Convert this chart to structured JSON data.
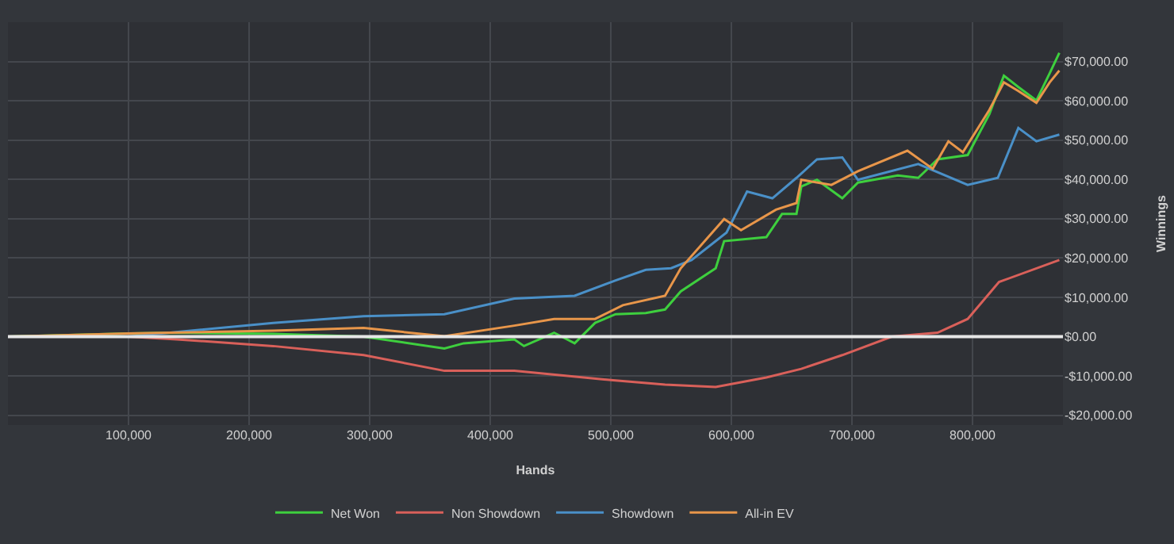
{
  "chart_data": {
    "type": "line",
    "xlabel": "Hands",
    "ylabel": "Winnings",
    "xlim": [
      0,
      875000
    ],
    "xticks": [
      {
        "value": 100000,
        "label": "100,000"
      },
      {
        "value": 200000,
        "label": "200,000"
      },
      {
        "value": 300000,
        "label": "300,000"
      },
      {
        "value": 400000,
        "label": "400,000"
      },
      {
        "value": 500000,
        "label": "500,000"
      },
      {
        "value": 600000,
        "label": "600,000"
      },
      {
        "value": 700000,
        "label": "700,000"
      },
      {
        "value": 800000,
        "label": "800,000"
      }
    ],
    "ylim": [
      -22500,
      80000
    ],
    "yticks": [
      {
        "value": -20000,
        "label": "-$20,000.00"
      },
      {
        "value": -10000,
        "label": "-$10,000.00"
      },
      {
        "value": 0,
        "label": "$0.00"
      },
      {
        "value": 10000,
        "label": "$10,000.00"
      },
      {
        "value": 20000,
        "label": "$20,000.00"
      },
      {
        "value": 30000,
        "label": "$30,000.00"
      },
      {
        "value": 40000,
        "label": "$40,000.00"
      },
      {
        "value": 50000,
        "label": "$50,000.00"
      },
      {
        "value": 60000,
        "label": "$60,000.00"
      },
      {
        "value": 70000,
        "label": "$70,000.00"
      }
    ],
    "grid": true,
    "legend": "bottom",
    "line_style": "solid",
    "ref_lines": [
      {
        "axis": "y",
        "value": 0,
        "color": "#e6e6e6"
      }
    ],
    "series": [
      {
        "name": "Net Won",
        "color": "#3ecf3e",
        "x": [
          0,
          100000,
          140000,
          220000,
          295000,
          362000,
          378000,
          420000,
          428000,
          453000,
          470000,
          487000,
          504000,
          529000,
          545000,
          558000,
          587000,
          594000,
          629000,
          642000,
          654000,
          658000,
          671000,
          692000,
          705000,
          738000,
          755000,
          771000,
          796000,
          814000,
          826000,
          838000,
          853000,
          864000,
          872000
        ],
        "values": [
          0,
          800,
          1000,
          700,
          0,
          -3000,
          -1700,
          -700,
          -2400,
          1000,
          -1700,
          3500,
          5700,
          6000,
          6900,
          11500,
          17400,
          24300,
          25300,
          31200,
          31200,
          38200,
          39900,
          35200,
          39200,
          41000,
          40400,
          45100,
          46200,
          56600,
          66400,
          63500,
          60100,
          67000,
          72200
        ]
      },
      {
        "name": "Non Showdown",
        "color": "#d9605a",
        "x": [
          0,
          100000,
          140000,
          220000,
          295000,
          362000,
          420000,
          502000,
          545000,
          587000,
          629000,
          658000,
          692000,
          733000,
          771000,
          796000,
          822000,
          872000
        ],
        "values": [
          0,
          0,
          -700,
          -2400,
          -4700,
          -8700,
          -8700,
          -11100,
          -12200,
          -12800,
          -10400,
          -8200,
          -4700,
          0,
          1000,
          4500,
          13900,
          19500
        ]
      },
      {
        "name": "Showdown",
        "color": "#4a90c8",
        "x": [
          0,
          100000,
          220000,
          295000,
          362000,
          420000,
          470000,
          504000,
          529000,
          550000,
          567000,
          596000,
          613000,
          634000,
          654000,
          671000,
          692000,
          705000,
          755000,
          796000,
          821000,
          838000,
          853000,
          872000
        ],
        "values": [
          0,
          0,
          3500,
          5200,
          5700,
          9700,
          10400,
          14300,
          17000,
          17400,
          19500,
          26500,
          36900,
          35200,
          40400,
          45100,
          45600,
          39900,
          43900,
          38600,
          40400,
          53100,
          49700,
          51400
        ]
      },
      {
        "name": "All-in EV",
        "color": "#e8964a",
        "x": [
          0,
          100000,
          220000,
          295000,
          362000,
          420000,
          453000,
          487000,
          510000,
          545000,
          558000,
          594000,
          608000,
          637000,
          654000,
          658000,
          683000,
          705000,
          746000,
          767000,
          780000,
          792000,
          814000,
          826000,
          838000,
          853000,
          864000,
          872000
        ],
        "values": [
          0,
          800,
          1500,
          2200,
          100,
          2800,
          4500,
          4500,
          8000,
          10400,
          17400,
          29900,
          27100,
          32300,
          34000,
          39900,
          38600,
          42100,
          47300,
          42700,
          49700,
          46900,
          57700,
          64700,
          62500,
          59500,
          64700,
          67700
        ]
      }
    ]
  }
}
